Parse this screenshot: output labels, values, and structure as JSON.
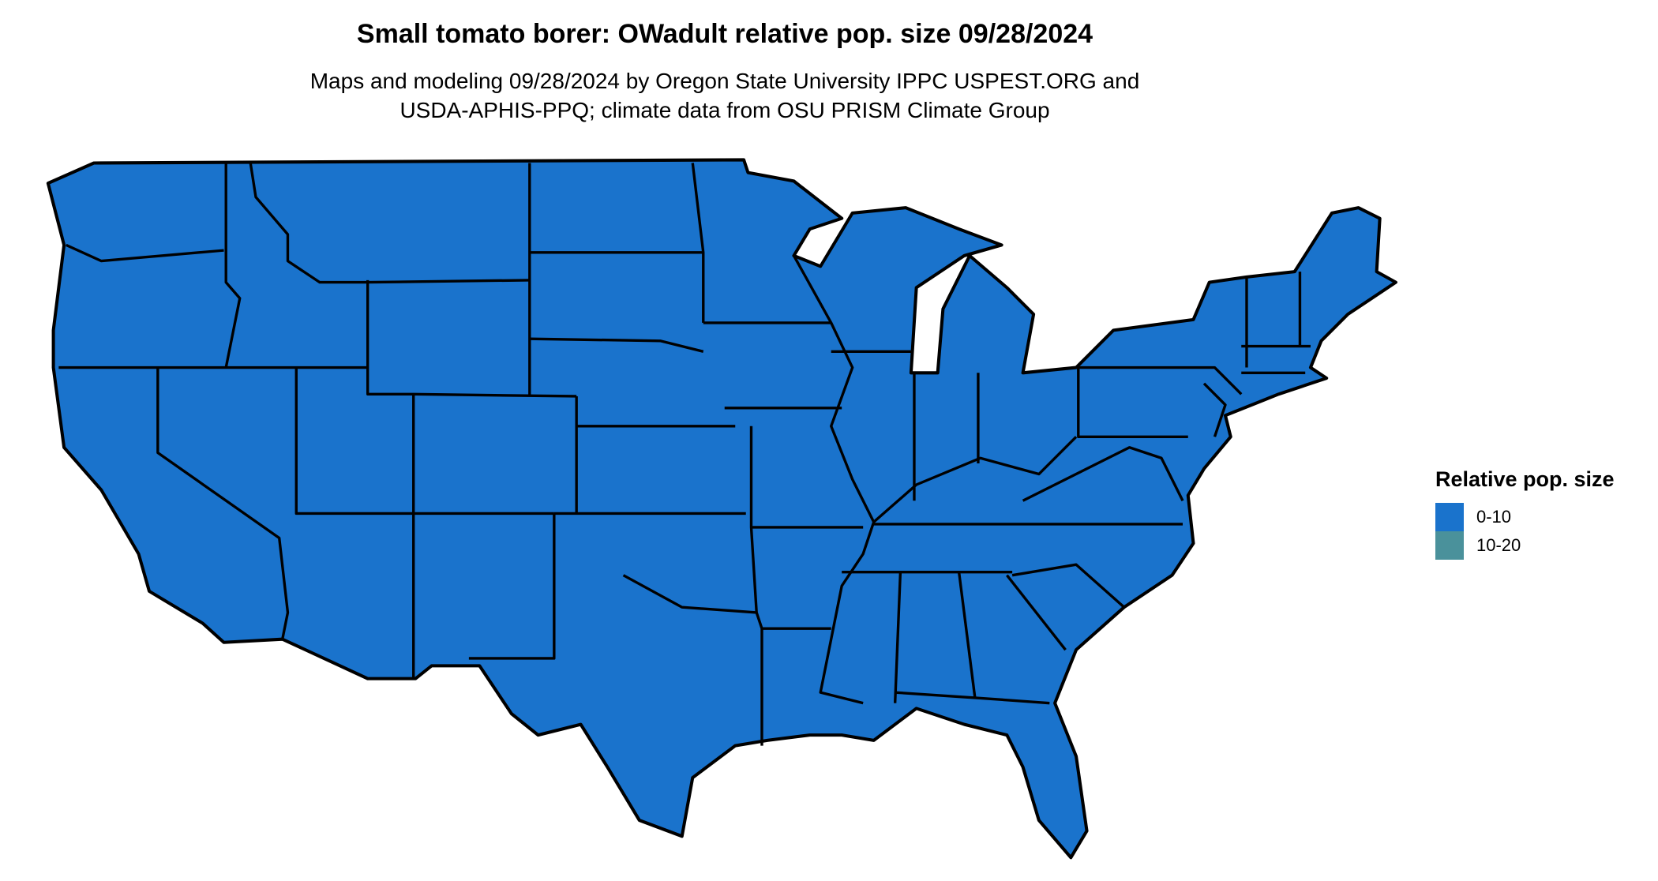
{
  "title": "Small tomato borer: OWadult relative pop. size 09/28/2024",
  "subtitle_line1": "Maps and modeling 09/28/2024 by Oregon State University IPPC USPEST.ORG and",
  "subtitle_line2": "USDA-APHIS-PPQ; climate data from OSU PRISM Climate Group",
  "map": {
    "region": "Contiguous United States",
    "fill_class": "0-10",
    "fill_color": "#1a73cc",
    "border_color": "#000000"
  },
  "legend": {
    "title": "Relative pop. size",
    "placement": "right",
    "items": [
      {
        "label": "0-10",
        "color": "#1a73cc"
      },
      {
        "label": "10-20",
        "color": "#4a919b"
      }
    ]
  }
}
